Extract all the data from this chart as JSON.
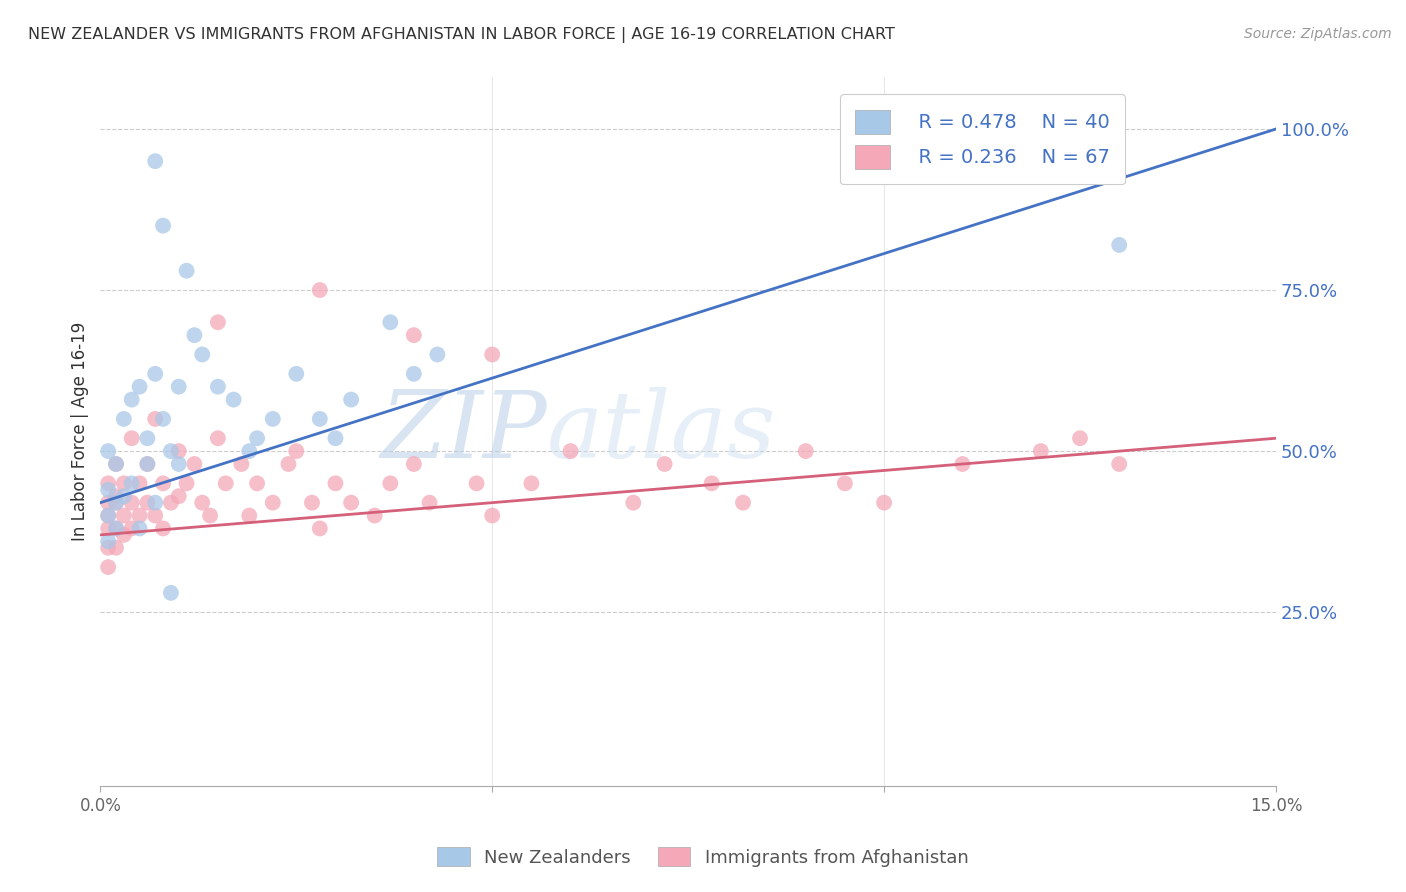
{
  "title": "NEW ZEALANDER VS IMMIGRANTS FROM AFGHANISTAN IN LABOR FORCE | AGE 16-19 CORRELATION CHART",
  "source": "Source: ZipAtlas.com",
  "ylabel": "In Labor Force | Age 16-19",
  "x_min": 0.0,
  "x_max": 0.15,
  "y_min": -0.02,
  "y_max": 1.08,
  "x_ticks": [
    0.0,
    0.05,
    0.1,
    0.15
  ],
  "x_tick_labels": [
    "0.0%",
    "",
    "",
    "15.0%"
  ],
  "y_ticks": [
    0.25,
    0.5,
    0.75,
    1.0
  ],
  "y_tick_labels": [
    "25.0%",
    "50.0%",
    "75.0%",
    "100.0%"
  ],
  "nz_color": "#a8c8e8",
  "af_color": "#f4a8b8",
  "nz_line_color": "#4472C4",
  "af_line_color": "#d4607a",
  "nz_line_x0": 0.0,
  "nz_line_y0": 0.42,
  "nz_line_x1": 0.15,
  "nz_line_y1": 1.0,
  "af_line_x0": 0.0,
  "af_line_y0": 0.37,
  "af_line_x1": 0.15,
  "af_line_y1": 0.52,
  "legend_R_nz": "R = 0.478",
  "legend_N_nz": "N = 40",
  "legend_R_af": "R = 0.236",
  "legend_N_af": "N = 67",
  "background_color": "#ffffff",
  "nz_x": [
    0.001,
    0.001,
    0.001,
    0.001,
    0.002,
    0.002,
    0.002,
    0.003,
    0.003,
    0.004,
    0.004,
    0.005,
    0.005,
    0.006,
    0.006,
    0.007,
    0.007,
    0.008,
    0.009,
    0.01,
    0.01,
    0.011,
    0.012,
    0.013,
    0.015,
    0.017,
    0.019,
    0.02,
    0.022,
    0.025,
    0.028,
    0.03,
    0.032,
    0.037,
    0.04,
    0.043,
    0.007,
    0.008,
    0.13,
    0.009
  ],
  "nz_y": [
    0.5,
    0.44,
    0.4,
    0.36,
    0.48,
    0.42,
    0.38,
    0.55,
    0.43,
    0.58,
    0.45,
    0.6,
    0.38,
    0.52,
    0.48,
    0.62,
    0.42,
    0.55,
    0.5,
    0.6,
    0.48,
    0.78,
    0.68,
    0.65,
    0.6,
    0.58,
    0.5,
    0.52,
    0.55,
    0.62,
    0.55,
    0.52,
    0.58,
    0.7,
    0.62,
    0.65,
    0.95,
    0.85,
    0.82,
    0.28
  ],
  "af_x": [
    0.001,
    0.001,
    0.001,
    0.001,
    0.001,
    0.001,
    0.002,
    0.002,
    0.002,
    0.002,
    0.002,
    0.003,
    0.003,
    0.003,
    0.004,
    0.004,
    0.004,
    0.005,
    0.005,
    0.006,
    0.006,
    0.007,
    0.007,
    0.008,
    0.008,
    0.009,
    0.01,
    0.01,
    0.011,
    0.012,
    0.013,
    0.014,
    0.015,
    0.016,
    0.018,
    0.019,
    0.02,
    0.022,
    0.024,
    0.025,
    0.027,
    0.028,
    0.03,
    0.032,
    0.035,
    0.037,
    0.04,
    0.042,
    0.048,
    0.05,
    0.055,
    0.06,
    0.068,
    0.072,
    0.078,
    0.082,
    0.09,
    0.095,
    0.1,
    0.11,
    0.12,
    0.125,
    0.13,
    0.015,
    0.028,
    0.04,
    0.05
  ],
  "af_y": [
    0.38,
    0.42,
    0.35,
    0.32,
    0.45,
    0.4,
    0.43,
    0.38,
    0.35,
    0.42,
    0.48,
    0.4,
    0.45,
    0.37,
    0.42,
    0.38,
    0.52,
    0.45,
    0.4,
    0.48,
    0.42,
    0.55,
    0.4,
    0.45,
    0.38,
    0.42,
    0.5,
    0.43,
    0.45,
    0.48,
    0.42,
    0.4,
    0.52,
    0.45,
    0.48,
    0.4,
    0.45,
    0.42,
    0.48,
    0.5,
    0.42,
    0.38,
    0.45,
    0.42,
    0.4,
    0.45,
    0.48,
    0.42,
    0.45,
    0.4,
    0.45,
    0.5,
    0.42,
    0.48,
    0.45,
    0.42,
    0.5,
    0.45,
    0.42,
    0.48,
    0.5,
    0.52,
    0.48,
    0.7,
    0.75,
    0.68,
    0.65
  ]
}
